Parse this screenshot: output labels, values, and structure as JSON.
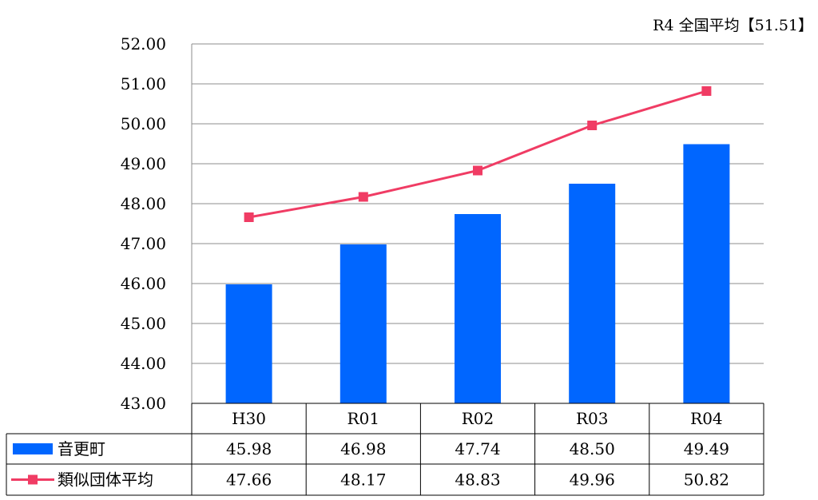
{
  "chart_data": {
    "type": "bar",
    "annotation": "R4 全国平均【51.51】",
    "categories": [
      "H30",
      "R01",
      "R02",
      "R03",
      "R04"
    ],
    "ylim": [
      43.0,
      52.0
    ],
    "yticks": [
      "52.00",
      "51.00",
      "50.00",
      "49.00",
      "48.00",
      "47.00",
      "46.00",
      "45.00",
      "44.00",
      "43.00"
    ],
    "grid": true,
    "series": [
      {
        "name": "音更町",
        "kind": "bar",
        "color": "#0066FF",
        "values": [
          45.98,
          46.98,
          47.74,
          48.5,
          49.49
        ],
        "labels": [
          "45.98",
          "46.98",
          "47.74",
          "48.50",
          "49.49"
        ]
      },
      {
        "name": "類似団体平均",
        "kind": "line",
        "color": "#F03C64",
        "values": [
          47.66,
          48.17,
          48.83,
          49.96,
          50.82
        ],
        "labels": [
          "47.66",
          "48.17",
          "48.83",
          "49.96",
          "50.82"
        ]
      }
    ]
  }
}
